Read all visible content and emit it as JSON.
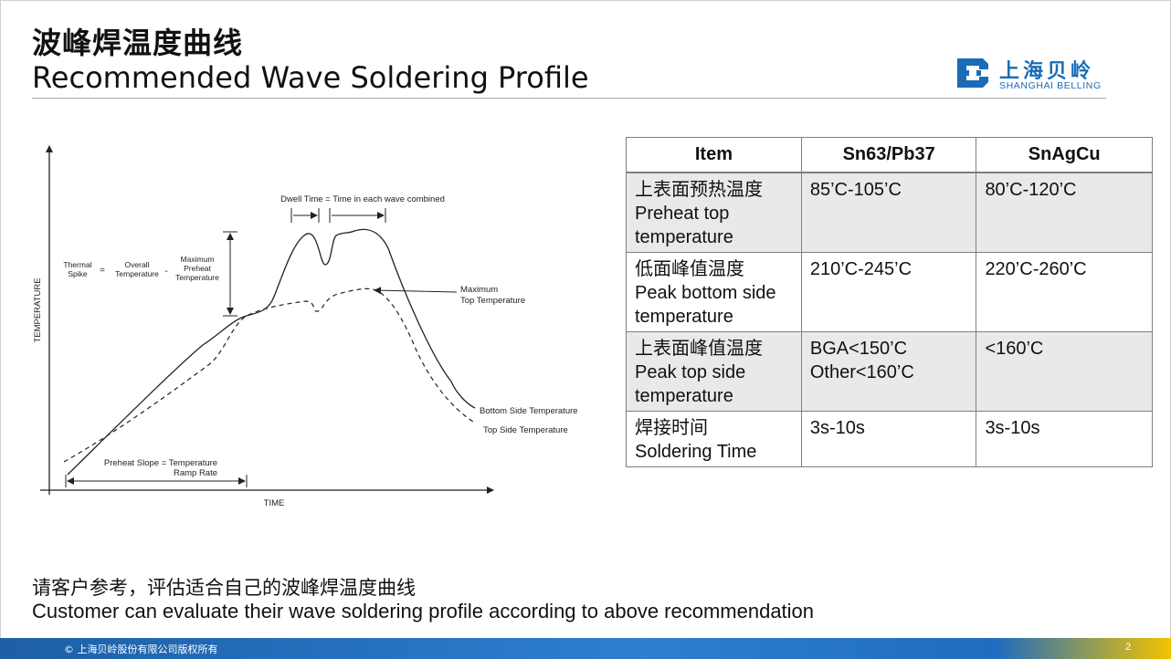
{
  "header": {
    "title_cn": "波峰焊温度曲线",
    "title_en": "Recommended Wave Soldering Profile"
  },
  "logo": {
    "name_cn": "上海贝岭",
    "name_en": "SHANGHAI BELLING",
    "brand_color": "#1a6bb8"
  },
  "diagram": {
    "y_axis_label": "TEMPERATURE",
    "x_axis_label": "TIME",
    "dwell_label": "Dwell Time = Time in each wave combined",
    "thermal_spike": {
      "label_1": "Thermal",
      "label_2": "Spike",
      "equals": "=",
      "overall_1": "Overall",
      "overall_2": "Temperature",
      "minus": "-",
      "max_preheat_1": "Maximum",
      "max_preheat_2": "Preheat",
      "max_preheat_3": "Temperature"
    },
    "max_top_1": "Maximum",
    "max_top_2": "Top Temperature",
    "bottom_side_label": "Bottom Side Temperature",
    "top_side_label": "Top Side Temperature",
    "preheat_1": "Preheat Slope = Temperature",
    "preheat_2": "Ramp Rate"
  },
  "table": {
    "headers": [
      "Item",
      "Sn63/Pb37",
      "SnAgCu"
    ],
    "rows": [
      {
        "item": [
          "上表面预热温度",
          "Preheat top",
          "temperature"
        ],
        "sn63": [
          "85’C-105’C"
        ],
        "snagcu": [
          "80’C-120’C"
        ]
      },
      {
        "item": [
          "低面峰值温度",
          "Peak bottom side",
          "temperature"
        ],
        "sn63": [
          "210’C-245’C"
        ],
        "snagcu": [
          "220’C-260’C"
        ]
      },
      {
        "item": [
          "上表面峰值温度",
          "Peak top side",
          "temperature"
        ],
        "sn63": [
          "BGA<150’C",
          "Other<160’C"
        ],
        "snagcu": [
          "<160’C"
        ]
      },
      {
        "item": [
          "焊接时间",
          "Soldering Time"
        ],
        "sn63": [
          "3s-10s"
        ],
        "snagcu": [
          "3s-10s"
        ]
      }
    ]
  },
  "note": {
    "cn": "请客户参考，评估适合自己的波峰焊温度曲线",
    "en": "Customer can evaluate their wave soldering profile according to above recommendation"
  },
  "footer": {
    "copyright": "© 上海贝岭股份有限公司版权所有",
    "page_number": "2"
  }
}
